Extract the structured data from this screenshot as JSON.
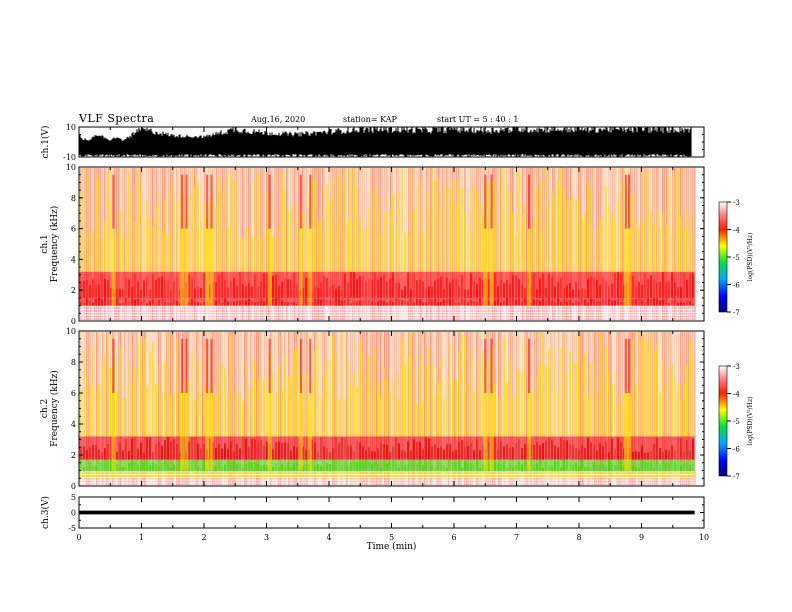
{
  "header": {
    "title": "VLF Spectra",
    "date": "Aug.16, 2020",
    "station": "station= KAP",
    "start": "start  UT  =   5  : 40 : 1"
  },
  "colors": {
    "spectrogram_background": "#ffffff",
    "noise": "#ff0000",
    "band_strong": "#e60000",
    "band_yellow": "#ffe000",
    "band_green": "#33dd00",
    "waveform": "#000000"
  },
  "chart_data": [
    {
      "type": "line",
      "id": "ch1_waveform",
      "ylabel": "ch.1(V)",
      "ylim": [
        -10,
        10
      ],
      "ytick_labels": [
        "-10",
        "10"
      ],
      "xlim": [
        0,
        10
      ],
      "description_series": "dense voltage waveform saturating near ±10 V, quieter segments around 0.1–0.5, 1.5–2.1, 2.8–3.0, 3.3–4.3 min",
      "series": [
        {
          "values": [
            [
              0.0,
              6
            ],
            [
              0.1,
              -2
            ],
            [
              0.3,
              5
            ],
            [
              0.6,
              -3
            ],
            [
              1.0,
              9
            ],
            [
              1.5,
              4
            ],
            [
              2.0,
              3
            ],
            [
              2.5,
              9
            ],
            [
              3.0,
              6
            ],
            [
              3.5,
              5
            ],
            [
              4.0,
              7
            ],
            [
              4.5,
              9
            ],
            [
              5.0,
              9
            ],
            [
              5.5,
              8
            ],
            [
              6.0,
              9
            ],
            [
              6.5,
              8
            ],
            [
              7.0,
              9
            ],
            [
              7.5,
              9
            ],
            [
              8.0,
              9
            ],
            [
              8.5,
              9
            ],
            [
              9.0,
              9
            ],
            [
              9.5,
              9
            ],
            [
              9.8,
              9
            ]
          ]
        }
      ]
    },
    {
      "type": "heatmap",
      "id": "ch1_spectrogram",
      "ylabel": "ch.1\nFrequency (kHz)",
      "ylim": [
        0,
        10
      ],
      "ytick_labels": [
        "0",
        "2",
        "4",
        "6",
        "8",
        "10"
      ],
      "xlim": [
        0,
        10
      ],
      "data_end_min": 9.85,
      "colorbar": {
        "label": "log(PSD)(V²/Hz)",
        "range": [
          -7,
          -3
        ],
        "tick_labels": [
          "-3",
          "-4",
          "-5",
          "-6",
          "-7"
        ]
      },
      "bands_kHz": [
        {
          "low": 1.0,
          "high": 1.5,
          "level": -3.6
        },
        {
          "low": 1.5,
          "high": 3.2,
          "level": -4.0
        },
        {
          "low": 3.2,
          "high": 10,
          "level": -4.6
        }
      ],
      "bursts_min": [
        0.55,
        1.65,
        1.72,
        2.05,
        2.12,
        3.05,
        3.55,
        3.7,
        6.5,
        6.6,
        7.2,
        8.75,
        8.8
      ]
    },
    {
      "type": "heatmap",
      "id": "ch2_spectrogram",
      "ylabel": "ch.2\nFrequency (kHz)",
      "ylim": [
        0,
        10
      ],
      "ytick_labels": [
        "0",
        "2",
        "4",
        "6",
        "8",
        "10"
      ],
      "xlim": [
        0,
        10
      ],
      "data_end_min": 9.85,
      "colorbar": {
        "label": "log(PSD)(V²/Hz)",
        "range": [
          -7,
          -3
        ],
        "tick_labels": [
          "-3",
          "-4",
          "-5",
          "-6",
          "-7"
        ]
      },
      "bands_kHz": [
        {
          "low": 0.5,
          "high": 0.9,
          "level": -4.2
        },
        {
          "low": 0.9,
          "high": 1.7,
          "level": -5.0
        },
        {
          "low": 1.7,
          "high": 3.2,
          "level": -3.8
        },
        {
          "low": 3.2,
          "high": 10,
          "level": -4.6
        }
      ],
      "bursts_min": [
        0.55,
        1.65,
        1.72,
        2.05,
        2.12,
        3.05,
        3.55,
        3.7,
        6.5,
        6.6,
        7.2,
        8.75,
        8.8
      ]
    },
    {
      "type": "line",
      "id": "ch3_waveform",
      "ylabel": "ch.3(V)",
      "ylim": [
        -5,
        5
      ],
      "ytick_labels": [
        "-5",
        "0",
        "5"
      ],
      "xlim": [
        0,
        10
      ],
      "series": [
        {
          "values": [
            [
              0.0,
              0.0
            ],
            [
              9.85,
              0.0
            ]
          ],
          "band_halfwidth_V": 0.6
        }
      ]
    }
  ],
  "x_axis": {
    "label": "Time (min)",
    "tick_labels": [
      "0",
      "1",
      "2",
      "3",
      "4",
      "5",
      "6",
      "7",
      "8",
      "9",
      "10"
    ]
  }
}
